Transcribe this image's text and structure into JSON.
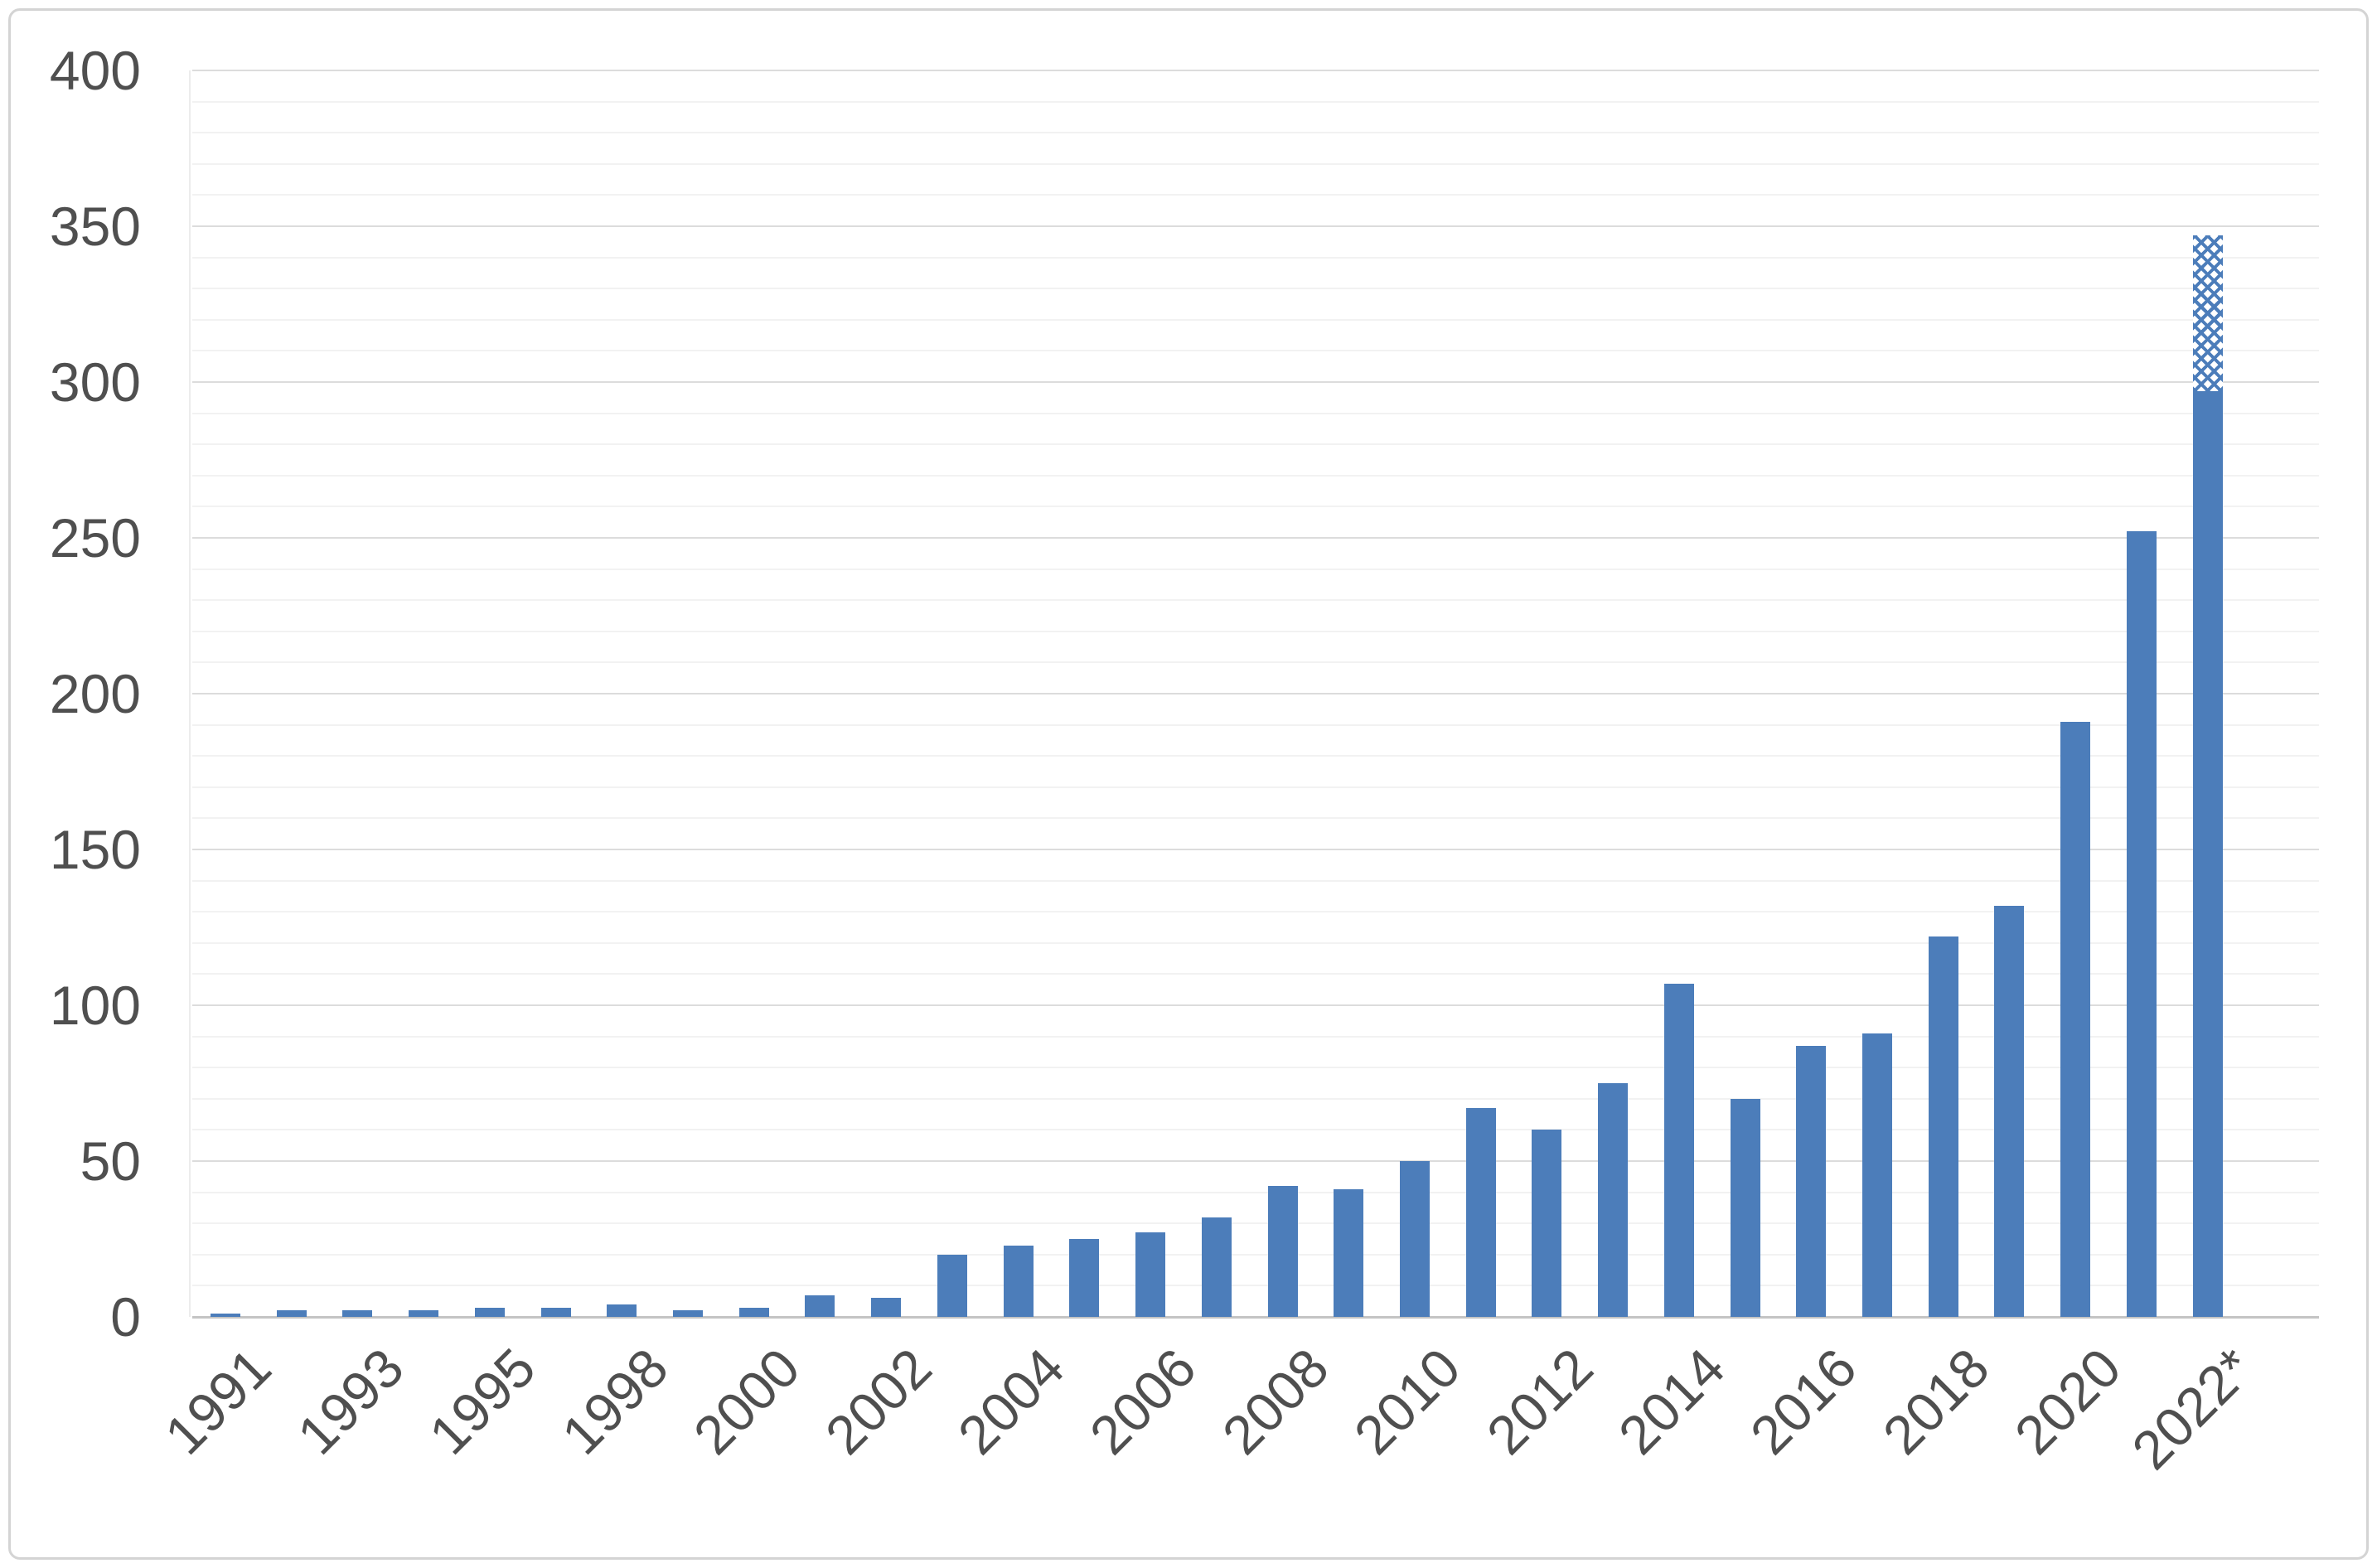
{
  "colors": {
    "bar": "#4c7dba",
    "bar_estimate_pattern": "#4c7dba",
    "gridline_minor": "#f2f2f2",
    "gridline_major": "#dcdcdc",
    "axis_baseline": "#c4c4c4",
    "tick_text": "#4f4f4f",
    "frame_border": "#d4d4d4",
    "background": "#ffffff"
  },
  "chart_data": {
    "type": "bar",
    "title": "",
    "xlabel": "",
    "ylabel": "",
    "categories": [
      "1991",
      "1992",
      "1993",
      "1994",
      "1995",
      "1996",
      "1998",
      "1999",
      "2000",
      "2001",
      "2002",
      "2003",
      "2004",
      "2005",
      "2006",
      "2007",
      "2008",
      "2009",
      "2010",
      "2011",
      "2012",
      "2013",
      "2014",
      "2015",
      "2016",
      "2017",
      "2018",
      "2019",
      "2020",
      "2021",
      "2022*"
    ],
    "values": [
      1,
      2,
      2,
      2,
      3,
      3,
      4,
      2,
      3,
      7,
      6,
      20,
      23,
      25,
      27,
      32,
      42,
      41,
      50,
      67,
      60,
      75,
      107,
      70,
      87,
      91,
      122,
      132,
      191,
      252,
      297
    ],
    "estimate_segment": {
      "category": "2022*",
      "solid_value": 297,
      "estimated_total": 347,
      "hatched_amount": 50,
      "style": "crosshatch-pattern"
    },
    "x_axis_visible_labels": [
      "1991",
      "1993",
      "1995",
      "1998",
      "2000",
      "2002",
      "2004",
      "2006",
      "2008",
      "2010",
      "2012",
      "2014",
      "2016",
      "2018",
      "2020",
      "2022*"
    ],
    "x_label_every_n_bars": 2,
    "x_label_rotation_deg": -45,
    "y_ticks": [
      "0",
      "50",
      "100",
      "150",
      "200",
      "250",
      "300",
      "350",
      "400"
    ],
    "ylim": [
      0,
      400
    ],
    "y_major_step": 50,
    "y_minor_step": 10,
    "grid": true,
    "legend": false
  }
}
